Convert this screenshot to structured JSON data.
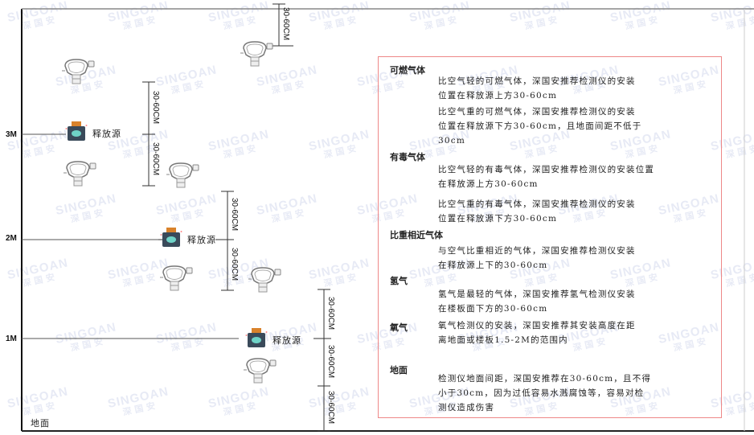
{
  "watermark": {
    "brand": "SINGOAN",
    "cn": "深国安"
  },
  "levels": [
    {
      "label": "3M"
    },
    {
      "label": "2M"
    },
    {
      "label": "1M"
    }
  ],
  "ground_label": "地面",
  "source_label": "释放源",
  "dimension_label": "30-60CM",
  "legend": {
    "sections": [
      {
        "title": "可燃气体",
        "items": [
          "比空气轻的可燃气体，深国安推荐检测仪的安装\n位置在释放源上方30-60cm",
          "比空气重的可燃气体，深国安推荐检测仪的安装\n位置在释放源下方30-60cm，且地面间距不低于\n30cm"
        ]
      },
      {
        "title": "有毒气体",
        "items": [
          "比空气轻的有毒气体，深国安推荐检测仪的安装位置\n在释放源上方30-60cm",
          "比空气重的有毒气体，深国安推荐检测仪的安装\n位置在释放源下方30-60cm"
        ]
      },
      {
        "title": "比重相近气体",
        "items": [
          "与空气比重相近的气体，深国安推荐检测仪安装\n在释放源上下的30-60cm"
        ]
      },
      {
        "title": "氢气",
        "items": [
          "氢气是最轻的气体，深国安推荐氢气检测仪安装\n在楼板面下方的30-60cm"
        ]
      },
      {
        "title": "氧气",
        "items": [
          "氧气检测仪的安装，深国安推荐其安装高度在距\n离地面或楼板1.5-2M的范围内"
        ]
      },
      {
        "title": "地面",
        "items": [
          "检测仪地面间距，深国安推荐在30-60cm，且不得\n小于30cm，因为过低容易水溅腐蚀等，容易对检\n测仪造成伤害"
        ]
      }
    ]
  },
  "colors": {
    "frame": "#111111",
    "box_border": "#ee8888",
    "source_body": "#3a4a5a",
    "source_cap": "#d9822b",
    "source_face": "#6fd3c7"
  }
}
